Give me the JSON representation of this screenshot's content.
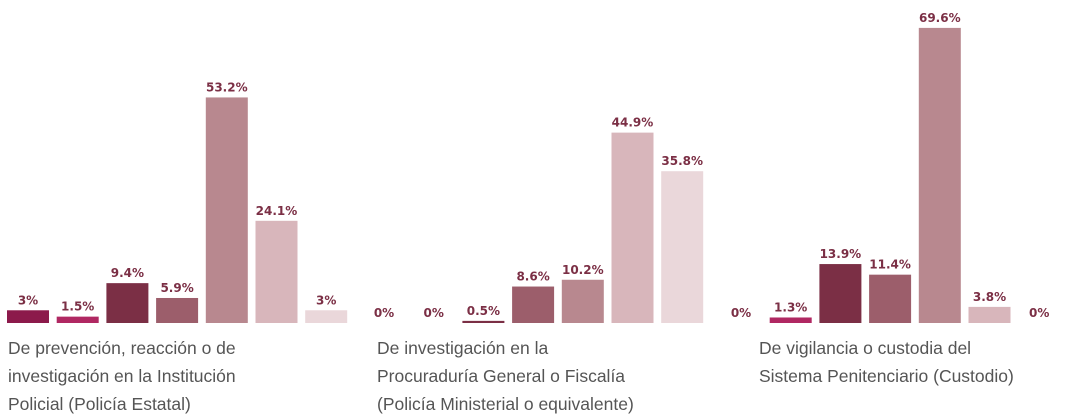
{
  "chart_data": [
    {
      "type": "bar",
      "title_lines": [
        "De prevención, reacción o de",
        "investigación en la Institución",
        "Policial (Policía Estatal)"
      ],
      "values": [
        3,
        1.5,
        9.4,
        5.9,
        53.2,
        24.1,
        3
      ],
      "value_labels": [
        "3%",
        "1.5%",
        "9.4%",
        "5.9%",
        "53.2%",
        "24.1%",
        "3%"
      ],
      "colors": [
        "#8c1a4b",
        "#b02862",
        "#7b2f45",
        "#9c5e6b",
        "#b8888f",
        "#d8b6bb",
        "#ead7da"
      ]
    },
    {
      "type": "bar",
      "title_lines": [
        "De investigación en la",
        "Procuraduría General o Fiscalía",
        "(Policía Ministerial o equivalente)"
      ],
      "values": [
        0,
        0,
        0.5,
        8.6,
        10.2,
        44.9,
        35.8
      ],
      "value_labels": [
        "0%",
        "0%",
        "0.5%",
        "8.6%",
        "10.2%",
        "44.9%",
        "35.8%"
      ],
      "colors": [
        "#8c1a4b",
        "#b02862",
        "#7b2f45",
        "#9c5e6b",
        "#b8888f",
        "#d8b6bb",
        "#ead7da"
      ]
    },
    {
      "type": "bar",
      "title_lines": [
        "De vigilancia o custodia del",
        "Sistema Penitenciario (Custodio)"
      ],
      "values": [
        0,
        1.3,
        13.9,
        11.4,
        69.6,
        3.8,
        0
      ],
      "value_labels": [
        "0%",
        "1.3%",
        "13.9%",
        "11.4%",
        "69.6%",
        "3.8%",
        "0%"
      ],
      "colors": [
        "#8c1a4b",
        "#b02862",
        "#7b2f45",
        "#9c5e6b",
        "#b8888f",
        "#d8b6bb",
        "#ead7da"
      ]
    }
  ]
}
